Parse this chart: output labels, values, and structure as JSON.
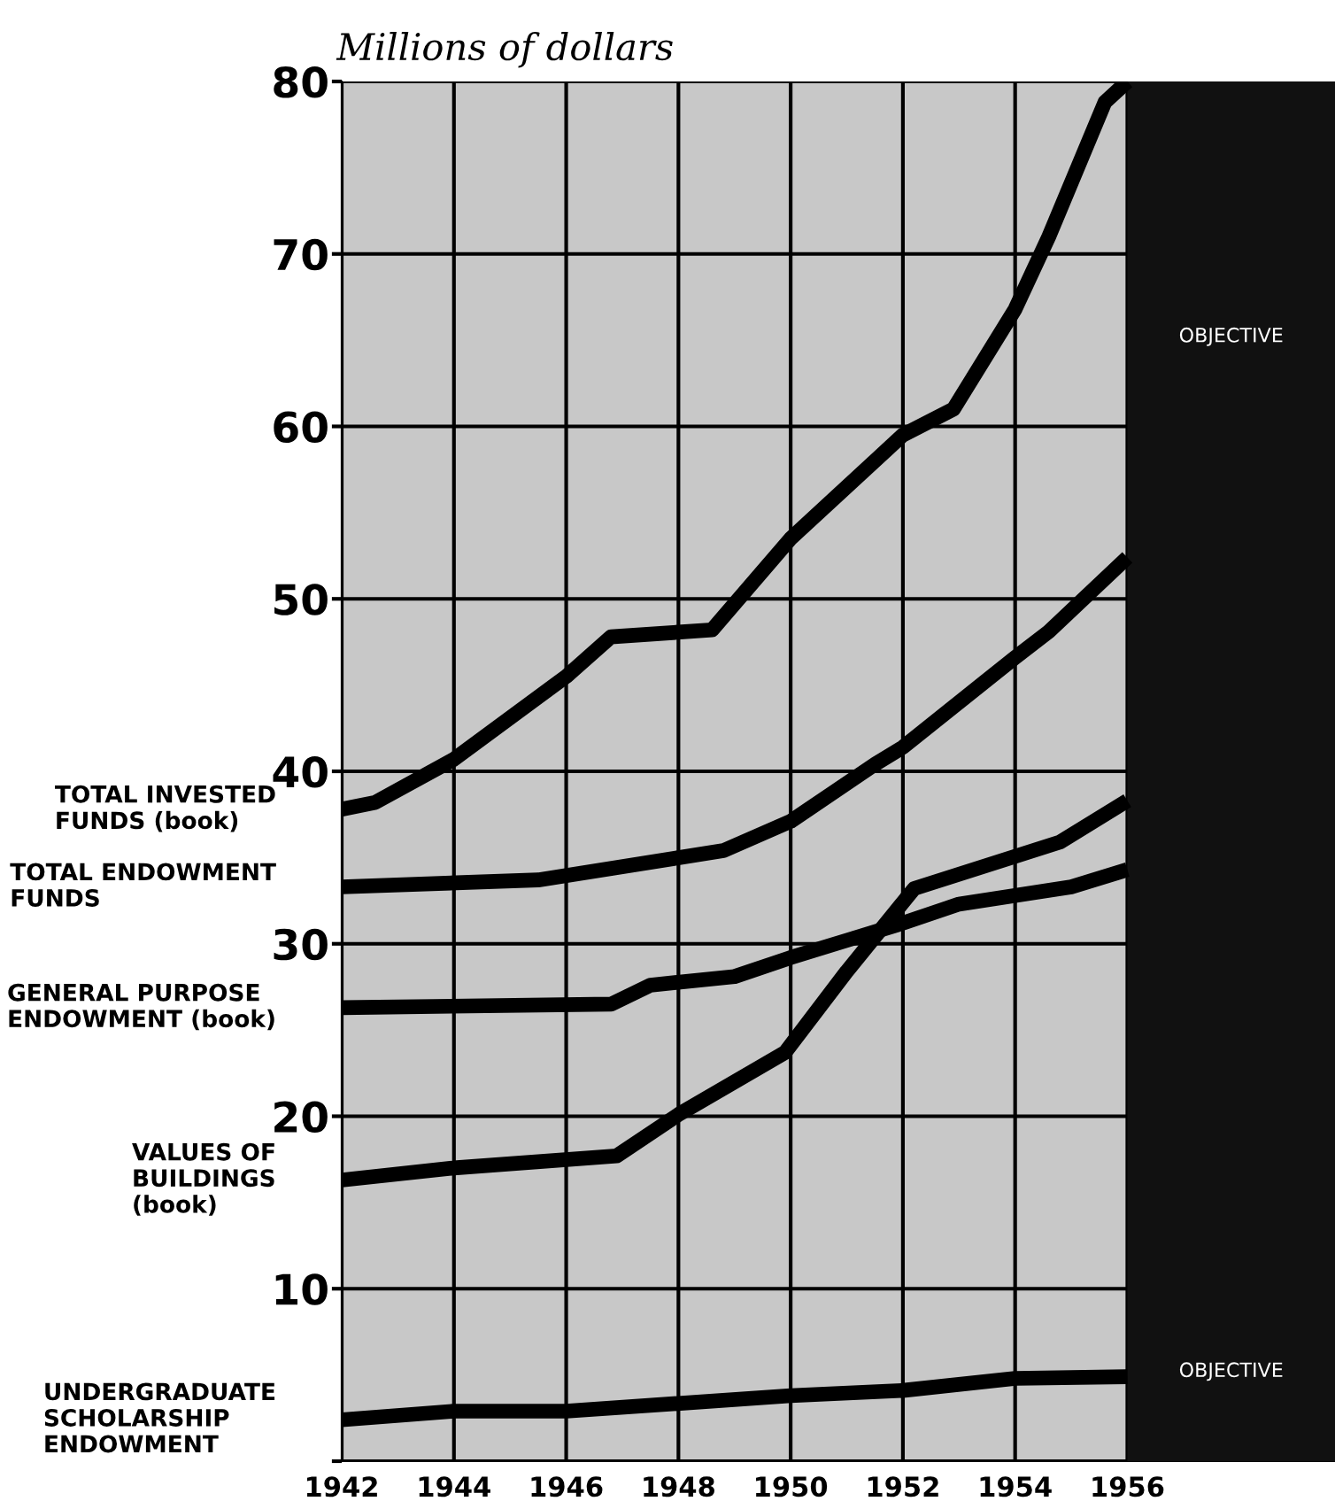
{
  "chart_data": {
    "type": "line",
    "ylabel": "Millions of dollars",
    "xlim": [
      1942,
      1959.7
    ],
    "xticks": [
      1942,
      1944,
      1946,
      1948,
      1950,
      1952,
      1954,
      1956
    ],
    "ylim": [
      0,
      80
    ],
    "yticks": [
      {
        "value": 0,
        "label": null
      },
      10,
      20,
      30,
      40,
      50,
      60,
      70,
      80
    ],
    "grid": true,
    "legend": false,
    "marker": "none",
    "line_style": "solid",
    "series": [
      {
        "name": "TOTAL INVESTED\nFUNDS (book)",
        "color": "#000000",
        "x": [
          1942,
          1942.6,
          1944,
          1946,
          1946.8,
          1948.6,
          1950,
          1952,
          1952.9,
          1954,
          1954.6,
          1955.6,
          1956
        ],
        "values": [
          37.8,
          38.2,
          40.7,
          45.5,
          47.8,
          48.2,
          53.5,
          59.5,
          61,
          66.8,
          71,
          78.8,
          80
        ]
      },
      {
        "name": "TOTAL ENDOWMENT\nFUNDS",
        "color": "#000000",
        "x": [
          1942,
          1945.5,
          1948.8,
          1950,
          1951.5,
          1952,
          1954,
          1954.6,
          1956
        ],
        "values": [
          33.3,
          33.7,
          35.4,
          37.1,
          40.4,
          41.4,
          46.6,
          48.1,
          52.4
        ]
      },
      {
        "name": "GENERAL PURPOSE\nENDOWMENT (book)",
        "color": "#000000",
        "x": [
          1942,
          1946.8,
          1947.5,
          1949,
          1950,
          1951,
          1952,
          1953,
          1955,
          1956
        ],
        "values": [
          26.3,
          26.5,
          27.6,
          28.1,
          29.2,
          30.2,
          31.2,
          32.3,
          33.3,
          34.3
        ]
      },
      {
        "name": "VALUES OF\nBUILDINGS\n(book)",
        "color": "#000000",
        "x": [
          1942,
          1944,
          1946.9,
          1948,
          1949.9,
          1951,
          1952.2,
          1954.8,
          1956
        ],
        "values": [
          16.3,
          17,
          17.7,
          20.1,
          23.7,
          28.4,
          33.2,
          35.9,
          38.3
        ]
      },
      {
        "name": "UNDERGRADUATE\nSCHOLARSHIP\nENDOWMENT",
        "color": "#000000",
        "x": [
          1942,
          1944,
          1946,
          1950,
          1952,
          1954,
          1956
        ],
        "values": [
          2.4,
          2.9,
          2.9,
          3.8,
          4.1,
          4.8,
          4.9
        ]
      }
    ],
    "bands": [
      {
        "axis": "x",
        "from": 1956,
        "to": 1959.7,
        "color": "#111111"
      }
    ],
    "annotations": [
      "OBJECTIVE",
      "OBJECTIVE"
    ]
  }
}
